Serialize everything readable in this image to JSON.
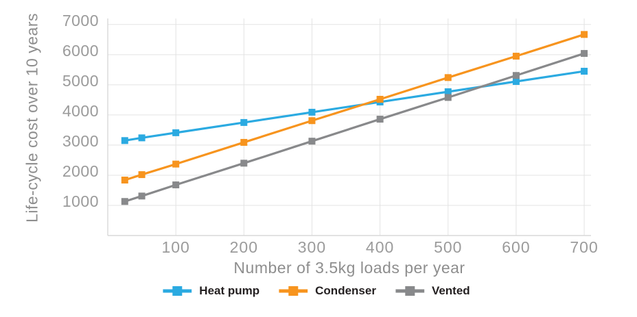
{
  "chart_data": {
    "type": "line",
    "title": "",
    "xlabel": "Number of 3.5kg loads per year",
    "ylabel": "Life-cycle cost over 10 years",
    "x": [
      25,
      50,
      100,
      200,
      300,
      400,
      500,
      600,
      700
    ],
    "series": [
      {
        "name": "Heat pump",
        "color": "#2BAAE1",
        "values": [
          3150,
          3240,
          3410,
          3750,
          4090,
          4430,
          4770,
          5110,
          5450
        ]
      },
      {
        "name": "Condenser",
        "color": "#F7941E",
        "values": [
          1840,
          2020,
          2370,
          3090,
          3810,
          4520,
          5240,
          5950,
          6670
        ]
      },
      {
        "name": "Vented",
        "color": "#88898B",
        "values": [
          1130,
          1310,
          1680,
          2400,
          3130,
          3860,
          4580,
          5310,
          6040
        ]
      }
    ],
    "xticks": [
      100,
      200,
      300,
      400,
      500,
      600,
      700
    ],
    "yticks": [
      1000,
      2000,
      3000,
      4000,
      5000,
      6000,
      7000
    ],
    "xlim": [
      0,
      710
    ],
    "ylim": [
      0,
      7200
    ],
    "grid": true,
    "legend_position": "bottom",
    "marker": "square"
  },
  "colors": {
    "background": "#FFFFFF",
    "gridline": "#E3E3E3",
    "axis_line": "#D8D8D8",
    "tick_text": "#9B9B9B",
    "axis_title_text": "#8E8E8E",
    "legend_text": "#231F20"
  }
}
